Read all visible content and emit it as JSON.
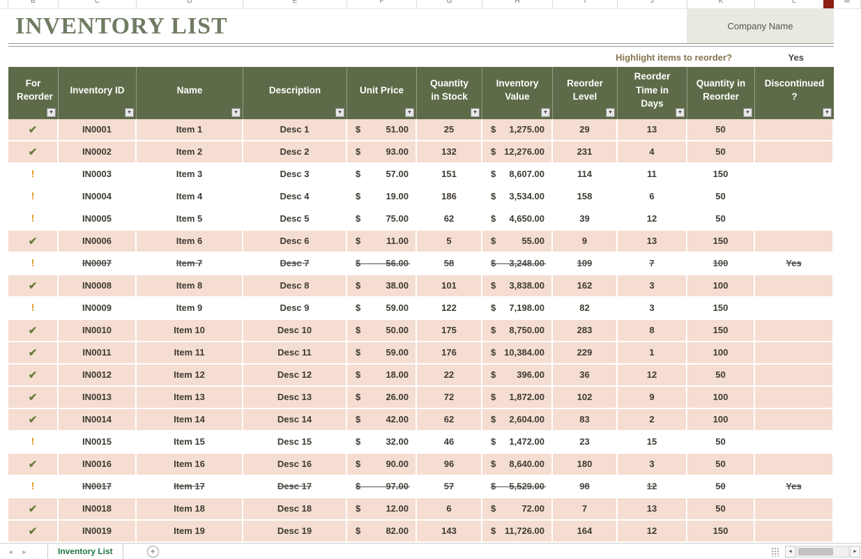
{
  "header": {
    "title": "INVENTORY LIST",
    "company_name": "Company Name",
    "highlight_label": "Highlight items to reorder?",
    "highlight_value": "Yes"
  },
  "currency_symbol": "$",
  "column_letters": [
    "B",
    "C",
    "D",
    "E",
    "F",
    "G",
    "H",
    "I",
    "J",
    "K",
    "L",
    "M"
  ],
  "columns": [
    {
      "key": "for_reorder",
      "label": "For Reorder",
      "width": 72
    },
    {
      "key": "inventory_id",
      "label": "Inventory ID",
      "width": 112
    },
    {
      "key": "name",
      "label": "Name",
      "width": 153
    },
    {
      "key": "description",
      "label": "Description",
      "width": 149
    },
    {
      "key": "unit_price",
      "label": "Unit Price",
      "width": 100
    },
    {
      "key": "qty_in_stock",
      "label": "Quantity in Stock",
      "width": 94
    },
    {
      "key": "inventory_value",
      "label": "Inventory Value",
      "width": 101
    },
    {
      "key": "reorder_level",
      "label": "Reorder Level",
      "width": 93
    },
    {
      "key": "reorder_time",
      "label": "Reorder Time in Days",
      "width": 100
    },
    {
      "key": "qty_in_reorder",
      "label": "Quantity in Reorder",
      "width": 97
    },
    {
      "key": "discontinued",
      "label": "Discontinued ?",
      "width": 113
    }
  ],
  "rows": [
    {
      "icon": "check",
      "highlight": true,
      "strike": false,
      "id": "IN0001",
      "name": "Item 1",
      "desc": "Desc 1",
      "price": "51.00",
      "qty": "25",
      "value": "1,275.00",
      "level": "29",
      "days": "13",
      "reorder": "50",
      "disc": ""
    },
    {
      "icon": "check",
      "highlight": true,
      "strike": false,
      "id": "IN0002",
      "name": "Item 2",
      "desc": "Desc 2",
      "price": "93.00",
      "qty": "132",
      "value": "12,276.00",
      "level": "231",
      "days": "4",
      "reorder": "50",
      "disc": ""
    },
    {
      "icon": "exclaim",
      "highlight": false,
      "strike": false,
      "id": "IN0003",
      "name": "Item 3",
      "desc": "Desc 3",
      "price": "57.00",
      "qty": "151",
      "value": "8,607.00",
      "level": "114",
      "days": "11",
      "reorder": "150",
      "disc": ""
    },
    {
      "icon": "exclaim",
      "highlight": false,
      "strike": false,
      "id": "IN0004",
      "name": "Item 4",
      "desc": "Desc 4",
      "price": "19.00",
      "qty": "186",
      "value": "3,534.00",
      "level": "158",
      "days": "6",
      "reorder": "50",
      "disc": ""
    },
    {
      "icon": "exclaim",
      "highlight": false,
      "strike": false,
      "id": "IN0005",
      "name": "Item 5",
      "desc": "Desc 5",
      "price": "75.00",
      "qty": "62",
      "value": "4,650.00",
      "level": "39",
      "days": "12",
      "reorder": "50",
      "disc": ""
    },
    {
      "icon": "check",
      "highlight": true,
      "strike": false,
      "id": "IN0006",
      "name": "Item 6",
      "desc": "Desc 6",
      "price": "11.00",
      "qty": "5",
      "value": "55.00",
      "level": "9",
      "days": "13",
      "reorder": "150",
      "disc": ""
    },
    {
      "icon": "exclaim",
      "highlight": false,
      "strike": true,
      "id": "IN0007",
      "name": "Item 7",
      "desc": "Desc 7",
      "price": "56.00",
      "qty": "58",
      "value": "3,248.00",
      "level": "109",
      "days": "7",
      "reorder": "100",
      "disc": "Yes"
    },
    {
      "icon": "check",
      "highlight": true,
      "strike": false,
      "id": "IN0008",
      "name": "Item 8",
      "desc": "Desc 8",
      "price": "38.00",
      "qty": "101",
      "value": "3,838.00",
      "level": "162",
      "days": "3",
      "reorder": "100",
      "disc": ""
    },
    {
      "icon": "exclaim",
      "highlight": false,
      "strike": false,
      "id": "IN0009",
      "name": "Item 9",
      "desc": "Desc 9",
      "price": "59.00",
      "qty": "122",
      "value": "7,198.00",
      "level": "82",
      "days": "3",
      "reorder": "150",
      "disc": ""
    },
    {
      "icon": "check",
      "highlight": true,
      "strike": false,
      "id": "IN0010",
      "name": "Item 10",
      "desc": "Desc 10",
      "price": "50.00",
      "qty": "175",
      "value": "8,750.00",
      "level": "283",
      "days": "8",
      "reorder": "150",
      "disc": ""
    },
    {
      "icon": "check",
      "highlight": true,
      "strike": false,
      "id": "IN0011",
      "name": "Item 11",
      "desc": "Desc 11",
      "price": "59.00",
      "qty": "176",
      "value": "10,384.00",
      "level": "229",
      "days": "1",
      "reorder": "100",
      "disc": ""
    },
    {
      "icon": "check",
      "highlight": true,
      "strike": false,
      "id": "IN0012",
      "name": "Item 12",
      "desc": "Desc 12",
      "price": "18.00",
      "qty": "22",
      "value": "396.00",
      "level": "36",
      "days": "12",
      "reorder": "50",
      "disc": ""
    },
    {
      "icon": "check",
      "highlight": true,
      "strike": false,
      "id": "IN0013",
      "name": "Item 13",
      "desc": "Desc 13",
      "price": "26.00",
      "qty": "72",
      "value": "1,872.00",
      "level": "102",
      "days": "9",
      "reorder": "100",
      "disc": ""
    },
    {
      "icon": "check",
      "highlight": true,
      "strike": false,
      "id": "IN0014",
      "name": "Item 14",
      "desc": "Desc 14",
      "price": "42.00",
      "qty": "62",
      "value": "2,604.00",
      "level": "83",
      "days": "2",
      "reorder": "100",
      "disc": ""
    },
    {
      "icon": "exclaim",
      "highlight": false,
      "strike": false,
      "id": "IN0015",
      "name": "Item 15",
      "desc": "Desc 15",
      "price": "32.00",
      "qty": "46",
      "value": "1,472.00",
      "level": "23",
      "days": "15",
      "reorder": "50",
      "disc": ""
    },
    {
      "icon": "check",
      "highlight": true,
      "strike": false,
      "id": "IN0016",
      "name": "Item 16",
      "desc": "Desc 16",
      "price": "90.00",
      "qty": "96",
      "value": "8,640.00",
      "level": "180",
      "days": "3",
      "reorder": "50",
      "disc": ""
    },
    {
      "icon": "exclaim",
      "highlight": false,
      "strike": true,
      "id": "IN0017",
      "name": "Item 17",
      "desc": "Desc 17",
      "price": "97.00",
      "qty": "57",
      "value": "5,529.00",
      "level": "98",
      "days": "12",
      "reorder": "50",
      "disc": "Yes"
    },
    {
      "icon": "check",
      "highlight": true,
      "strike": false,
      "id": "IN0018",
      "name": "Item 18",
      "desc": "Desc 18",
      "price": "12.00",
      "qty": "6",
      "value": "72.00",
      "level": "7",
      "days": "13",
      "reorder": "50",
      "disc": ""
    },
    {
      "icon": "check",
      "highlight": true,
      "strike": false,
      "id": "IN0019",
      "name": "Item 19",
      "desc": "Desc 19",
      "price": "82.00",
      "qty": "143",
      "value": "11,726.00",
      "level": "164",
      "days": "12",
      "reorder": "150",
      "disc": ""
    }
  ],
  "sheet": {
    "tab_label": "Inventory List"
  },
  "icons": {
    "check": "✔",
    "exclaim": "!",
    "filter_arrow": "▼",
    "nav_left": "◄",
    "nav_right": "►",
    "plus": "+",
    "scroll_left": "◄",
    "scroll_right": "►"
  },
  "colors": {
    "header_bg": "#5d6b48",
    "header_text": "#ffffff",
    "row_highlight": "#f5ddd1",
    "row_text": "#3e3a33",
    "title_text": "#6f7b63",
    "accent_green": "#217346",
    "check_icon": "#6b7d3c",
    "alert_icon": "#e0a22e",
    "company_box_bg": "#e9e8e1",
    "status_bar": "#1d4e2c",
    "marker": "#8b2012"
  }
}
